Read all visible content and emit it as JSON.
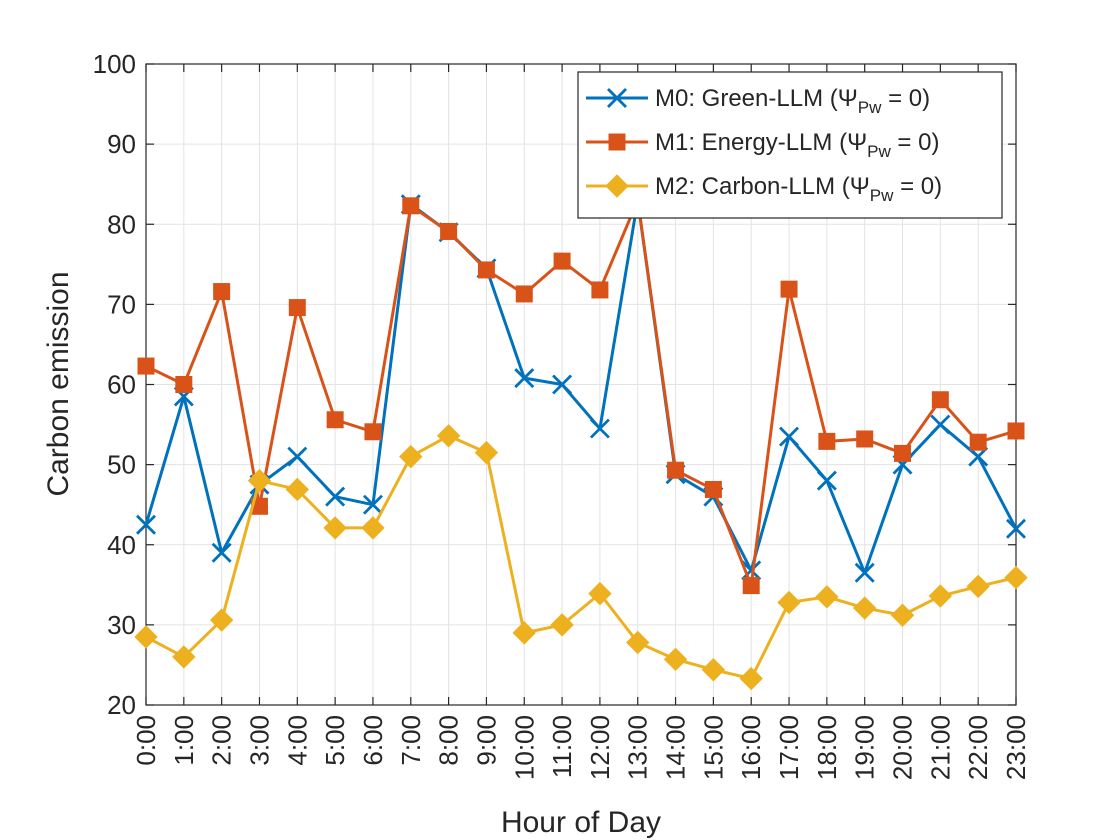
{
  "chart_data": {
    "type": "line",
    "title": "",
    "xlabel": "Hour of Day",
    "ylabel": "Carbon emission",
    "ylim": [
      20,
      100
    ],
    "yticks": [
      20,
      30,
      40,
      50,
      60,
      70,
      80,
      90,
      100
    ],
    "grid": true,
    "legend_position": "top-right",
    "categories": [
      "0:00",
      "1:00",
      "2:00",
      "3:00",
      "4:00",
      "5:00",
      "6:00",
      "7:00",
      "8:00",
      "9:00",
      "10:00",
      "11:00",
      "12:00",
      "13:00",
      "14:00",
      "15:00",
      "16:00",
      "17:00",
      "18:00",
      "19:00",
      "20:00",
      "21:00",
      "22:00",
      "23:00"
    ],
    "series": [
      {
        "name": "M0: Green-LLM (",
        "symbol": "Ψ",
        "subscript": "Pw",
        "suffix": " = 0)",
        "color": "#0072BD",
        "marker": "x",
        "values": [
          42.5,
          58.5,
          39.0,
          47.5,
          51.0,
          46.0,
          45.0,
          82.5,
          79.0,
          74.5,
          60.8,
          60.0,
          54.5,
          83.0,
          48.8,
          46.0,
          36.8,
          53.5,
          48.0,
          36.5,
          50.0,
          55.0,
          51.0,
          42.0
        ]
      },
      {
        "name": "M1: Energy-LLM (",
        "symbol": "Ψ",
        "subscript": "Pw",
        "suffix": " = 0)",
        "color": "#D95319",
        "marker": "square",
        "values": [
          62.3,
          60.0,
          71.6,
          44.8,
          69.6,
          55.6,
          54.1,
          82.3,
          79.1,
          74.3,
          71.3,
          75.4,
          71.8,
          83.0,
          49.3,
          46.9,
          34.9,
          71.9,
          52.9,
          53.2,
          51.4,
          58.1,
          52.8,
          54.2
        ]
      },
      {
        "name": "M2: Carbon-LLM (",
        "symbol": "Ψ",
        "subscript": "Pw",
        "suffix": " = 0)",
        "color": "#EDB120",
        "marker": "diamond",
        "values": [
          28.5,
          26.0,
          30.6,
          48.0,
          46.9,
          42.1,
          42.1,
          51.0,
          53.6,
          51.5,
          29.0,
          30.0,
          33.9,
          27.8,
          25.7,
          24.4,
          23.3,
          32.8,
          33.5,
          32.1,
          31.2,
          33.6,
          34.8,
          35.9
        ]
      }
    ]
  }
}
